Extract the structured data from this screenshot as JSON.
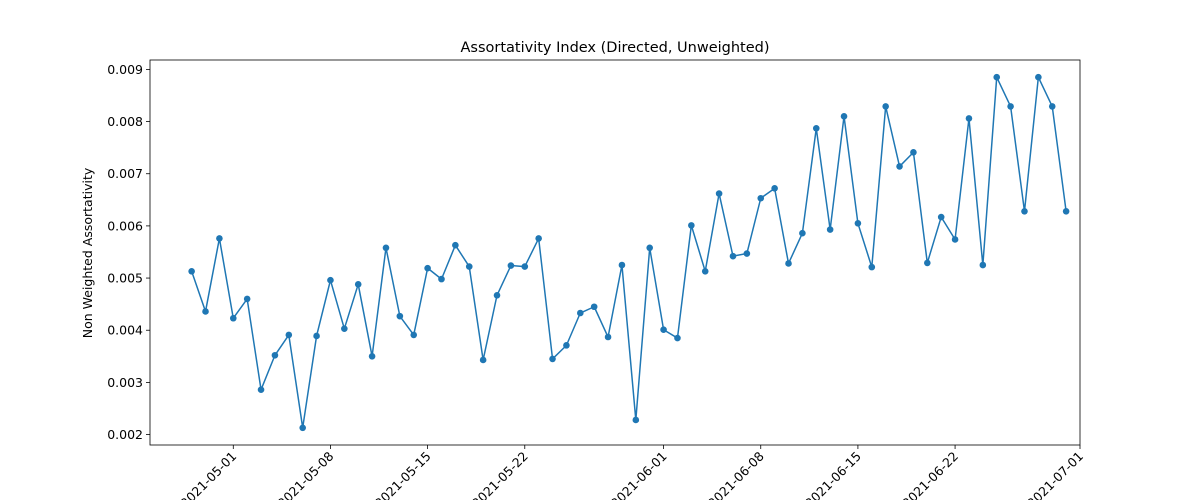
{
  "chart_data": {
    "type": "line",
    "title": "Assortativity Index (Directed, Unweighted)",
    "xlabel": "",
    "ylabel": "Non Weighted Assortativity",
    "xlim": [
      "2021-04-25",
      "2021-07-01"
    ],
    "ylim": [
      0.0018,
      0.00918
    ],
    "grid": false,
    "line_color": "#1f77b4",
    "marker": "circle",
    "x_ticks": [
      "2021-05-01",
      "2021-05-08",
      "2021-05-15",
      "2021-05-22",
      "2021-06-01",
      "2021-06-08",
      "2021-06-15",
      "2021-06-22",
      "2021-07-01"
    ],
    "y_ticks": [
      0.002,
      0.003,
      0.004,
      0.005,
      0.006,
      0.007,
      0.008,
      0.009
    ],
    "y_tick_labels": [
      "0.002",
      "0.003",
      "0.004",
      "0.005",
      "0.006",
      "0.007",
      "0.008",
      "0.009"
    ],
    "series": [
      {
        "x": [
          "2021-04-28",
          "2021-04-29",
          "2021-04-30",
          "2021-05-01",
          "2021-05-02",
          "2021-05-03",
          "2021-05-04",
          "2021-05-05",
          "2021-05-06",
          "2021-05-07",
          "2021-05-08",
          "2021-05-09",
          "2021-05-10",
          "2021-05-11",
          "2021-05-12",
          "2021-05-13",
          "2021-05-14",
          "2021-05-15",
          "2021-05-16",
          "2021-05-17",
          "2021-05-18",
          "2021-05-19",
          "2021-05-20",
          "2021-05-21",
          "2021-05-22",
          "2021-05-23",
          "2021-05-24",
          "2021-05-25",
          "2021-05-26",
          "2021-05-27",
          "2021-05-28",
          "2021-05-29",
          "2021-05-30",
          "2021-05-31",
          "2021-06-01",
          "2021-06-02",
          "2021-06-03",
          "2021-06-04",
          "2021-06-05",
          "2021-06-06",
          "2021-06-07",
          "2021-06-08",
          "2021-06-09",
          "2021-06-10",
          "2021-06-11",
          "2021-06-12",
          "2021-06-13",
          "2021-06-14",
          "2021-06-15",
          "2021-06-16",
          "2021-06-17",
          "2021-06-18",
          "2021-06-19",
          "2021-06-20",
          "2021-06-21",
          "2021-06-22",
          "2021-06-23",
          "2021-06-24",
          "2021-06-25",
          "2021-06-26",
          "2021-06-27",
          "2021-06-28",
          "2021-06-29",
          "2021-06-30"
        ],
        "values": [
          0.00513,
          0.00436,
          0.00576,
          0.00423,
          0.0046,
          0.00286,
          0.00352,
          0.00391,
          0.00213,
          0.00389,
          0.00496,
          0.00403,
          0.00488,
          0.0035,
          0.00558,
          0.00427,
          0.00391,
          0.00519,
          0.00498,
          0.00563,
          0.00522,
          0.00343,
          0.00467,
          0.00524,
          0.00522,
          0.00576,
          0.00345,
          0.00371,
          0.00433,
          0.00445,
          0.00387,
          0.00525,
          0.00228,
          0.00558,
          0.00401,
          0.00385,
          0.00601,
          0.00513,
          0.00662,
          0.00542,
          0.00547,
          0.00653,
          0.00672,
          0.00528,
          0.00586,
          0.00787,
          0.00593,
          0.0081,
          0.00605,
          0.00521,
          0.00829,
          0.00714,
          0.00741,
          0.00529,
          0.00617,
          0.00574,
          0.00806,
          0.00525,
          0.00885,
          0.00829,
          0.00628,
          0.00885,
          0.00829,
          0.00628
        ]
      }
    ]
  }
}
